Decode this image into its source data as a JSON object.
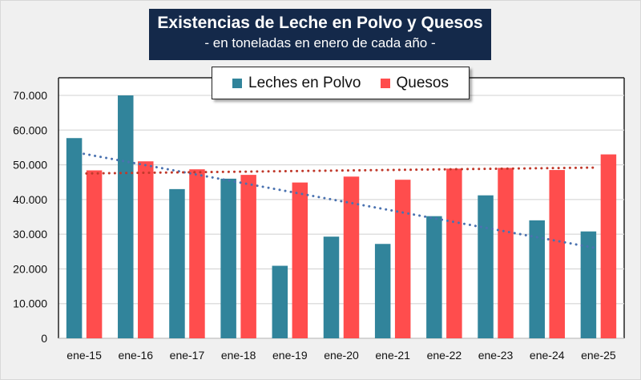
{
  "chart_data": {
    "type": "bar",
    "title": "Existencias de Leche en Polvo y Quesos",
    "subtitle": "- en toneladas en enero de cada año -",
    "xlabel": "",
    "ylabel": "",
    "ylim": [
      0,
      70000
    ],
    "yticks": [
      0,
      10000,
      20000,
      30000,
      40000,
      50000,
      60000,
      70000
    ],
    "ytick_labels": [
      "0",
      "10.000",
      "20.000",
      "30.000",
      "40.000",
      "50.000",
      "60.000",
      "70.000"
    ],
    "grid": true,
    "legend_position": "top-center",
    "categories": [
      "ene-15",
      "ene-16",
      "ene-17",
      "ene-18",
      "ene-19",
      "ene-20",
      "ene-21",
      "ene-22",
      "ene-23",
      "ene-24",
      "ene-25"
    ],
    "series": [
      {
        "name": "Leches en Polvo",
        "color": "#31849b",
        "trendline": "linear dotted",
        "trend_color": "#4a72b0",
        "values": [
          57700,
          70000,
          43000,
          46000,
          20900,
          29300,
          27200,
          35200,
          41200,
          34000,
          30800
        ]
      },
      {
        "name": "Quesos",
        "color": "#ff4d4d",
        "trendline": "linear dotted",
        "trend_color": "#c0392b",
        "values": [
          48400,
          51000,
          48700,
          47100,
          44900,
          46600,
          45700,
          48900,
          49100,
          48500,
          53000
        ]
      }
    ]
  }
}
